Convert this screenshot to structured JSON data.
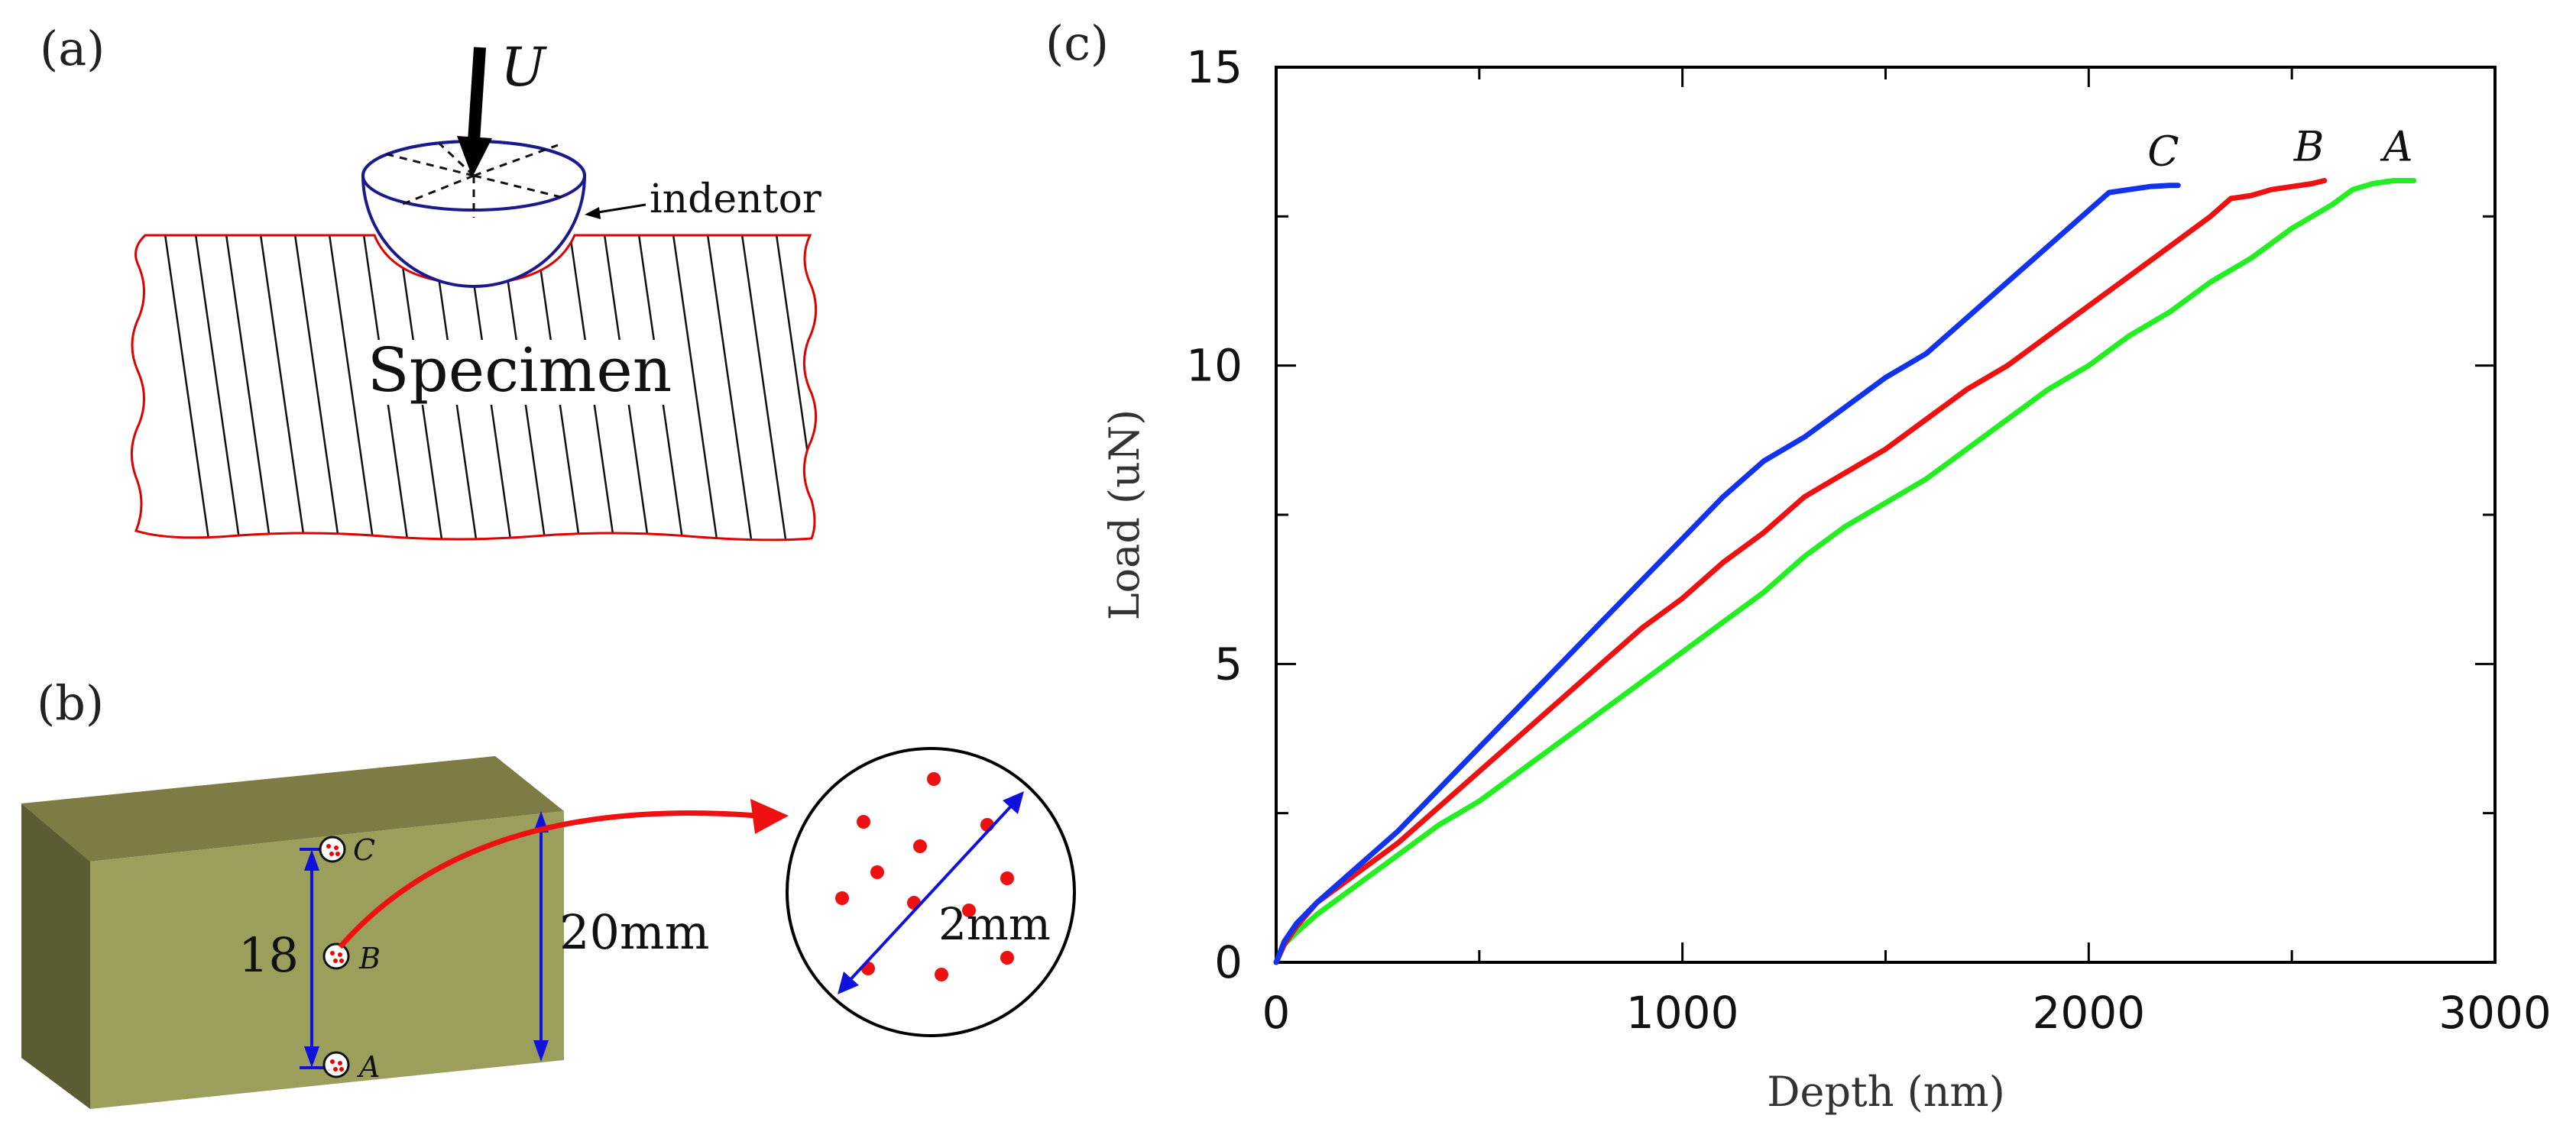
{
  "panel_a": {
    "label": "(a)",
    "force_symbol": "U",
    "indentor_label": "indentor",
    "specimen_label": "Specimen"
  },
  "panel_b": {
    "label": "(b)",
    "points": [
      "C",
      "B",
      "A"
    ],
    "spacing_label": "18",
    "height_label": "20mm",
    "zoom_diameter_label": "2mm",
    "block_color": "#9c9e5c"
  },
  "panel_c": {
    "label": "(c)"
  },
  "chart_data": {
    "type": "line",
    "title": "",
    "xlabel": "Depth (nm)",
    "ylabel": "Load (uN)",
    "xlim": [
      0,
      3000
    ],
    "ylim": [
      0,
      15
    ],
    "xticks": [
      0,
      1000,
      2000,
      3000
    ],
    "yticks": [
      0,
      5,
      10,
      15
    ],
    "grid": false,
    "series": [
      {
        "name": "A",
        "color": "#22ee22",
        "x": [
          0,
          20,
          50,
          100,
          200,
          300,
          400,
          500,
          600,
          700,
          800,
          900,
          1000,
          1100,
          1200,
          1300,
          1400,
          1500,
          1600,
          1700,
          1800,
          1900,
          2000,
          2100,
          2200,
          2300,
          2400,
          2500,
          2600,
          2650,
          2700,
          2750,
          2800
        ],
        "y": [
          0,
          0.3,
          0.5,
          0.8,
          1.3,
          1.8,
          2.3,
          2.7,
          3.2,
          3.7,
          4.2,
          4.7,
          5.2,
          5.7,
          6.2,
          6.8,
          7.3,
          7.7,
          8.1,
          8.6,
          9.1,
          9.6,
          10.0,
          10.5,
          10.9,
          11.4,
          11.8,
          12.3,
          12.7,
          12.95,
          13.05,
          13.1,
          13.1
        ]
      },
      {
        "name": "B",
        "color": "#ee1111",
        "x": [
          0,
          20,
          50,
          100,
          200,
          300,
          400,
          500,
          600,
          700,
          800,
          900,
          1000,
          1100,
          1200,
          1300,
          1400,
          1500,
          1600,
          1700,
          1800,
          1900,
          2000,
          2100,
          2200,
          2300,
          2350,
          2400,
          2450,
          2500,
          2550,
          2580
        ],
        "y": [
          0,
          0.3,
          0.6,
          1.0,
          1.5,
          2.0,
          2.6,
          3.2,
          3.8,
          4.4,
          5.0,
          5.6,
          6.1,
          6.7,
          7.2,
          7.8,
          8.2,
          8.6,
          9.1,
          9.6,
          10.0,
          10.5,
          11.0,
          11.5,
          12.0,
          12.5,
          12.8,
          12.85,
          12.95,
          13.0,
          13.05,
          13.1
        ]
      },
      {
        "name": "C",
        "color": "#1133ee",
        "x": [
          0,
          20,
          50,
          100,
          200,
          300,
          400,
          500,
          600,
          700,
          800,
          900,
          1000,
          1100,
          1200,
          1300,
          1400,
          1500,
          1600,
          1700,
          1800,
          1900,
          2000,
          2050,
          2100,
          2150,
          2200,
          2220
        ],
        "y": [
          0,
          0.35,
          0.65,
          1.0,
          1.6,
          2.2,
          2.9,
          3.6,
          4.3,
          5.0,
          5.7,
          6.4,
          7.1,
          7.8,
          8.4,
          8.8,
          9.3,
          9.8,
          10.2,
          10.8,
          11.4,
          12.0,
          12.6,
          12.9,
          12.95,
          13.0,
          13.02,
          13.02
        ]
      }
    ],
    "annotations": [
      "C",
      "B",
      "A"
    ]
  }
}
